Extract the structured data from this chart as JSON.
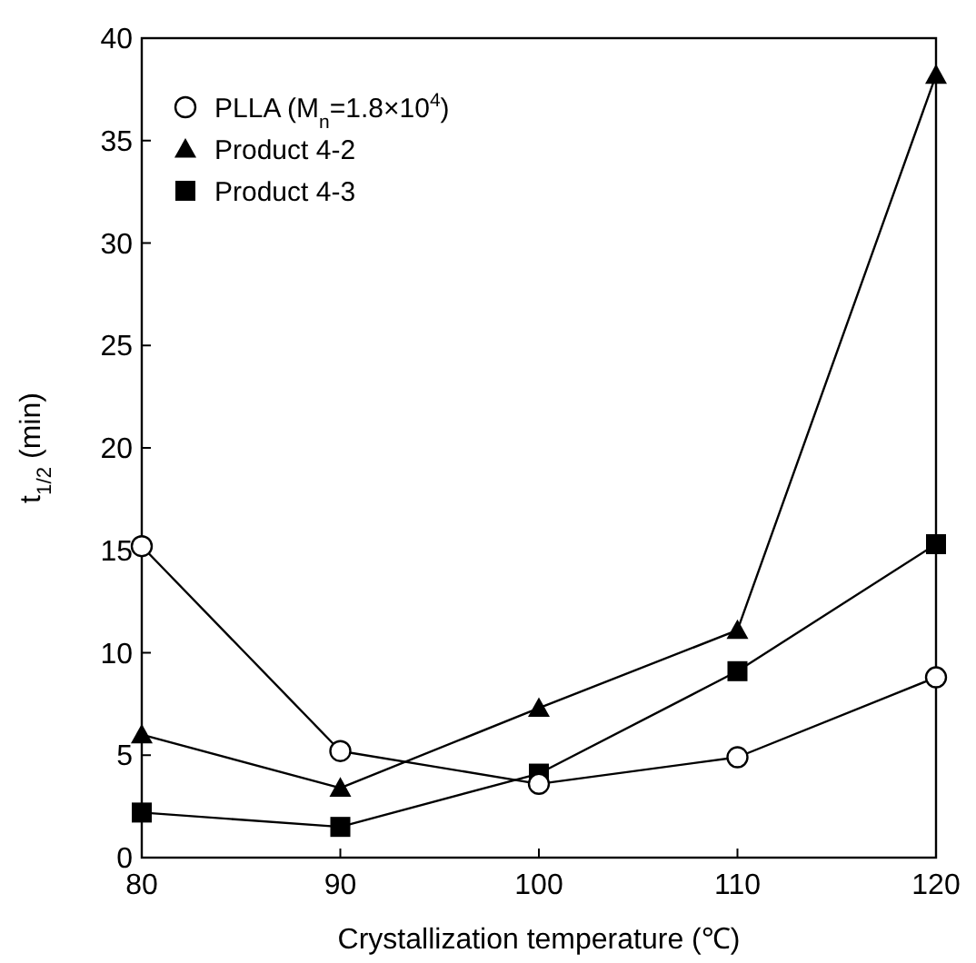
{
  "chart_data": {
    "type": "line",
    "xlabel": "Crystallization temperature (℃)",
    "ylabel": "t$_{1/2}$ (min)",
    "x": [
      80,
      90,
      100,
      110,
      120
    ],
    "series": [
      {
        "name": "PLLA (M$_{n}$=1.8×10$^{4}$)",
        "color": "#000000",
        "marker": "circle",
        "values": [
          15.2,
          5.2,
          3.6,
          4.9,
          8.8
        ]
      },
      {
        "name": "Product 4-2",
        "color": "#000000",
        "marker": "triangle",
        "values": [
          6.0,
          3.4,
          7.3,
          11.1,
          38.2
        ]
      },
      {
        "name": "Product 4-3",
        "color": "#000000",
        "marker": "square",
        "values": [
          2.2,
          1.5,
          4.1,
          9.1,
          15.3
        ]
      }
    ],
    "xlim": [
      80,
      120
    ],
    "xticks": [
      80,
      90,
      100,
      110,
      120
    ],
    "ylim": [
      0,
      40
    ],
    "yticks": [
      0,
      5,
      10,
      15,
      20,
      25,
      30,
      35,
      40
    ],
    "legend": "top left",
    "grid": false,
    "line_style": "solid"
  }
}
